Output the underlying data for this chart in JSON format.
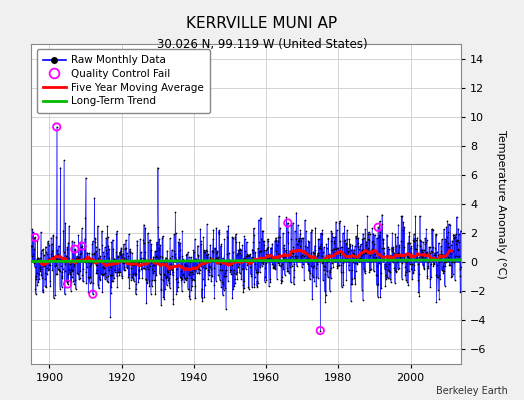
{
  "title": "KERRVILLE MUNI AP",
  "subtitle": "30.026 N, 99.119 W (United States)",
  "ylabel": "Temperature Anomaly (°C)",
  "credit": "Berkeley Earth",
  "xlim": [
    1895,
    2014
  ],
  "ylim": [
    -7,
    15
  ],
  "yticks": [
    -6,
    -4,
    -2,
    0,
    2,
    4,
    6,
    8,
    10,
    12,
    14
  ],
  "xticks": [
    1900,
    1920,
    1940,
    1960,
    1980,
    2000
  ],
  "start_year": 1895,
  "end_year": 2013,
  "seed": 42,
  "bg_color": "#f0f0f0",
  "plot_bg_color": "#ffffff",
  "line_color": "#0000ff",
  "marker_color": "#000000",
  "moving_avg_color": "#ff0000",
  "trend_color": "#00bb00",
  "qc_fail_color": "#ff00ff",
  "grid_color": "#cccccc",
  "legend_items": [
    "Raw Monthly Data",
    "Quality Control Fail",
    "Five Year Moving Average",
    "Long-Term Trend"
  ],
  "qc_fail_indices": [
    12,
    84,
    120,
    144,
    168,
    204,
    852,
    960,
    1152
  ],
  "qc_fail_values": [
    1.7,
    9.3,
    -1.5,
    0.9,
    1.1,
    -2.2,
    2.7,
    -4.7,
    2.4
  ]
}
